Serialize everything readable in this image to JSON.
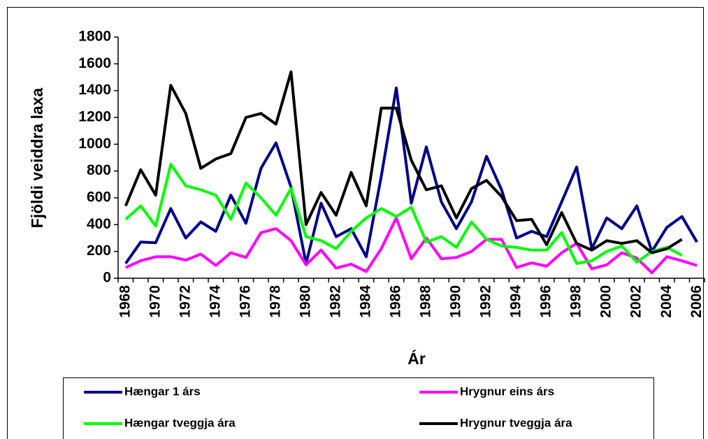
{
  "chart_data": {
    "type": "line",
    "x_label": "Ár",
    "y_label": "Fjöldi veiddra laxa",
    "categories": [
      "1968",
      null,
      "1970",
      null,
      "1972",
      null,
      "1974",
      null,
      "1976",
      null,
      "1978",
      null,
      "1980",
      null,
      "1982",
      null,
      "1984",
      null,
      "1986",
      null,
      "1988",
      null,
      "1990",
      null,
      "1992",
      null,
      "1994",
      null,
      "1996",
      null,
      "1998",
      null,
      "2000",
      null,
      "2002",
      null,
      "2004",
      null,
      "2006"
    ],
    "ylim": [
      0,
      1800
    ],
    "yticks": [
      0,
      200,
      400,
      600,
      800,
      1000,
      1200,
      1400,
      1600,
      1800
    ],
    "series": [
      {
        "name": "Hængar 1 árs",
        "color": "#00008b",
        "values": [
          110,
          270,
          265,
          520,
          300,
          420,
          350,
          620,
          410,
          820,
          1010,
          680,
          110,
          560,
          310,
          370,
          160,
          760,
          1420,
          560,
          980,
          570,
          370,
          570,
          910,
          660,
          300,
          350,
          310,
          570,
          830,
          220,
          450,
          370,
          540,
          200,
          380,
          460,
          270
        ]
      },
      {
        "name": "Hrygnur eins árs",
        "color": "#ff00ff",
        "values": [
          80,
          130,
          160,
          160,
          135,
          180,
          95,
          190,
          155,
          340,
          370,
          280,
          100,
          210,
          75,
          105,
          50,
          220,
          450,
          145,
          300,
          145,
          155,
          200,
          290,
          290,
          80,
          115,
          90,
          190,
          260,
          70,
          100,
          190,
          150,
          40,
          160,
          130,
          95
        ]
      },
      {
        "name": "Hængar tveggja ára",
        "color": "#00ff00",
        "values": [
          440,
          540,
          390,
          850,
          690,
          660,
          620,
          440,
          710,
          600,
          470,
          670,
          310,
          280,
          220,
          350,
          450,
          520,
          460,
          530,
          270,
          310,
          230,
          420,
          290,
          240,
          230,
          210,
          210,
          340,
          110,
          130,
          200,
          240,
          120,
          200,
          230,
          170,
          null
        ]
      },
      {
        "name": "Hrygnur tveggja ára",
        "color": "#000000",
        "values": [
          540,
          810,
          620,
          1440,
          1230,
          820,
          890,
          930,
          1200,
          1230,
          1150,
          1540,
          400,
          640,
          470,
          790,
          540,
          1270,
          1270,
          880,
          660,
          690,
          450,
          670,
          730,
          610,
          430,
          440,
          250,
          490,
          260,
          210,
          280,
          260,
          280,
          190,
          220,
          290,
          null
        ]
      }
    ]
  }
}
